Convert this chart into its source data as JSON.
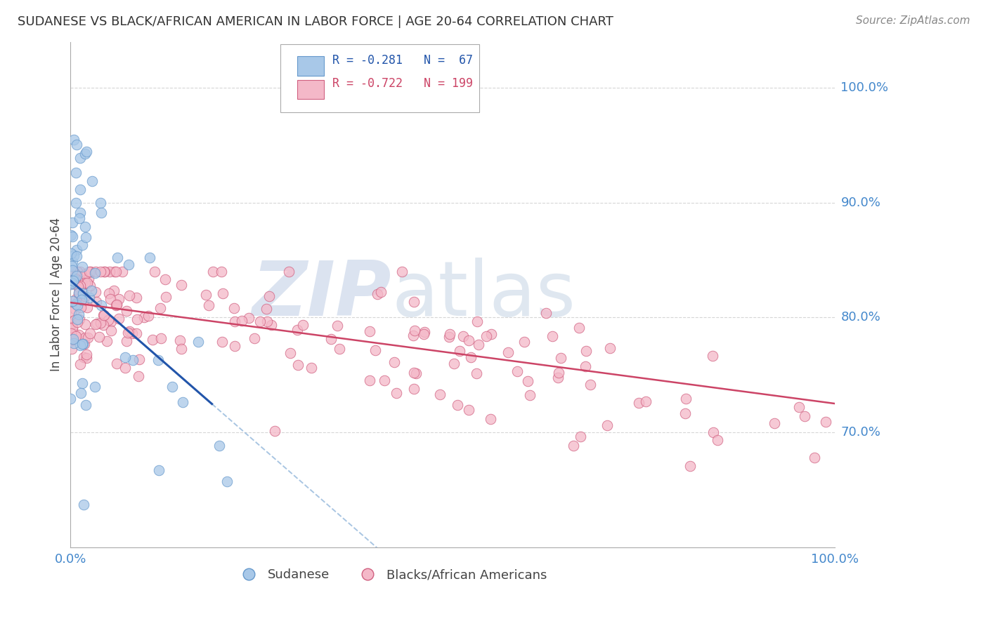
{
  "title": "SUDANESE VS BLACK/AFRICAN AMERICAN IN LABOR FORCE | AGE 20-64 CORRELATION CHART",
  "source": "Source: ZipAtlas.com",
  "ylabel": "In Labor Force | Age 20-64",
  "blue_color": "#a8c8e8",
  "blue_edge_color": "#6699cc",
  "pink_color": "#f4b8c8",
  "pink_edge_color": "#d06080",
  "blue_line_color": "#2255aa",
  "pink_line_color": "#cc4466",
  "dashed_line_color": "#99bbdd",
  "grid_color": "#cccccc",
  "title_color": "#333333",
  "axis_tick_color": "#4488cc",
  "watermark_zip_color": "#ccd8ea",
  "watermark_atlas_color": "#c5d5e5",
  "legend_r_blue": "R = -0.281",
  "legend_n_blue": "N =  67",
  "legend_r_pink": "R = -0.722",
  "legend_n_pink": "N = 199",
  "xlim": [
    0.0,
    1.0
  ],
  "ylim": [
    0.6,
    1.04
  ],
  "yticks": [
    0.7,
    0.8,
    0.9,
    1.0
  ],
  "ytick_labels": [
    "70.0%",
    "80.0%",
    "90.0%",
    "100.0%"
  ],
  "blue_intercept": 0.832,
  "blue_slope": -0.58,
  "pink_intercept": 0.813,
  "pink_slope": -0.088
}
